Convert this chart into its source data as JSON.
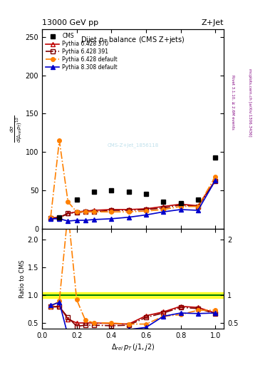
{
  "cms_x": [
    0.1,
    0.2,
    0.3,
    0.4,
    0.5,
    0.6,
    0.7,
    0.8,
    0.9,
    1.0
  ],
  "cms_y": [
    15,
    38,
    48,
    50,
    48,
    45,
    35,
    33,
    38,
    93
  ],
  "py6_370_x": [
    0.05,
    0.1,
    0.15,
    0.2,
    0.25,
    0.3,
    0.4,
    0.5,
    0.6,
    0.7,
    0.8,
    0.9,
    1.0
  ],
  "py6_370_y": [
    14,
    15,
    20,
    22,
    23,
    24,
    25,
    25,
    26,
    29,
    32,
    30,
    63
  ],
  "py6_370_color": "#c00000",
  "py6_391_x": [
    0.05,
    0.1,
    0.15,
    0.2,
    0.25,
    0.3,
    0.4,
    0.5,
    0.6,
    0.7,
    0.8,
    0.9,
    1.0
  ],
  "py6_391_y": [
    14,
    14,
    20,
    21,
    22,
    22,
    24,
    24,
    25,
    27,
    31,
    29,
    62
  ],
  "py6_391_color": "#800000",
  "py6_def_x": [
    0.05,
    0.1,
    0.15,
    0.2,
    0.25,
    0.3,
    0.4,
    0.5,
    0.6,
    0.7,
    0.8,
    0.9,
    1.0
  ],
  "py6_def_y": [
    15,
    115,
    35,
    22,
    22,
    22,
    22,
    22,
    23,
    25,
    29,
    29,
    68
  ],
  "py6_def_color": "#ff8000",
  "py8_def_x": [
    0.05,
    0.1,
    0.15,
    0.2,
    0.25,
    0.3,
    0.4,
    0.5,
    0.6,
    0.7,
    0.8,
    0.9,
    1.0
  ],
  "py8_def_y": [
    13,
    13,
    10,
    11,
    11,
    12,
    13,
    15,
    18,
    22,
    25,
    24,
    63
  ],
  "py8_def_color": "#0000cc",
  "ratio_py6_370_y": [
    0.79,
    0.8,
    0.57,
    0.5,
    0.5,
    0.5,
    0.49,
    0.48,
    0.63,
    0.7,
    0.8,
    0.78,
    0.68
  ],
  "ratio_py6_391_y": [
    0.79,
    0.79,
    0.6,
    0.44,
    0.46,
    0.46,
    0.45,
    0.46,
    0.6,
    0.68,
    0.78,
    0.76,
    0.67
  ],
  "ratio_py6_def_y": [
    0.79,
    0.9,
    2.5,
    0.92,
    0.55,
    0.5,
    0.5,
    0.48,
    0.48,
    0.62,
    0.65,
    0.73,
    0.73
  ],
  "ratio_py8_def_y": [
    0.82,
    0.87,
    0.27,
    0.3,
    0.3,
    0.31,
    0.32,
    0.38,
    0.42,
    0.62,
    0.68,
    0.67,
    0.68
  ],
  "ylim_main": [
    0,
    260
  ],
  "ylim_ratio": [
    0.4,
    2.2
  ],
  "xlim": [
    0.0,
    1.05
  ],
  "cms_band_low": 0.95,
  "cms_band_high": 1.05
}
